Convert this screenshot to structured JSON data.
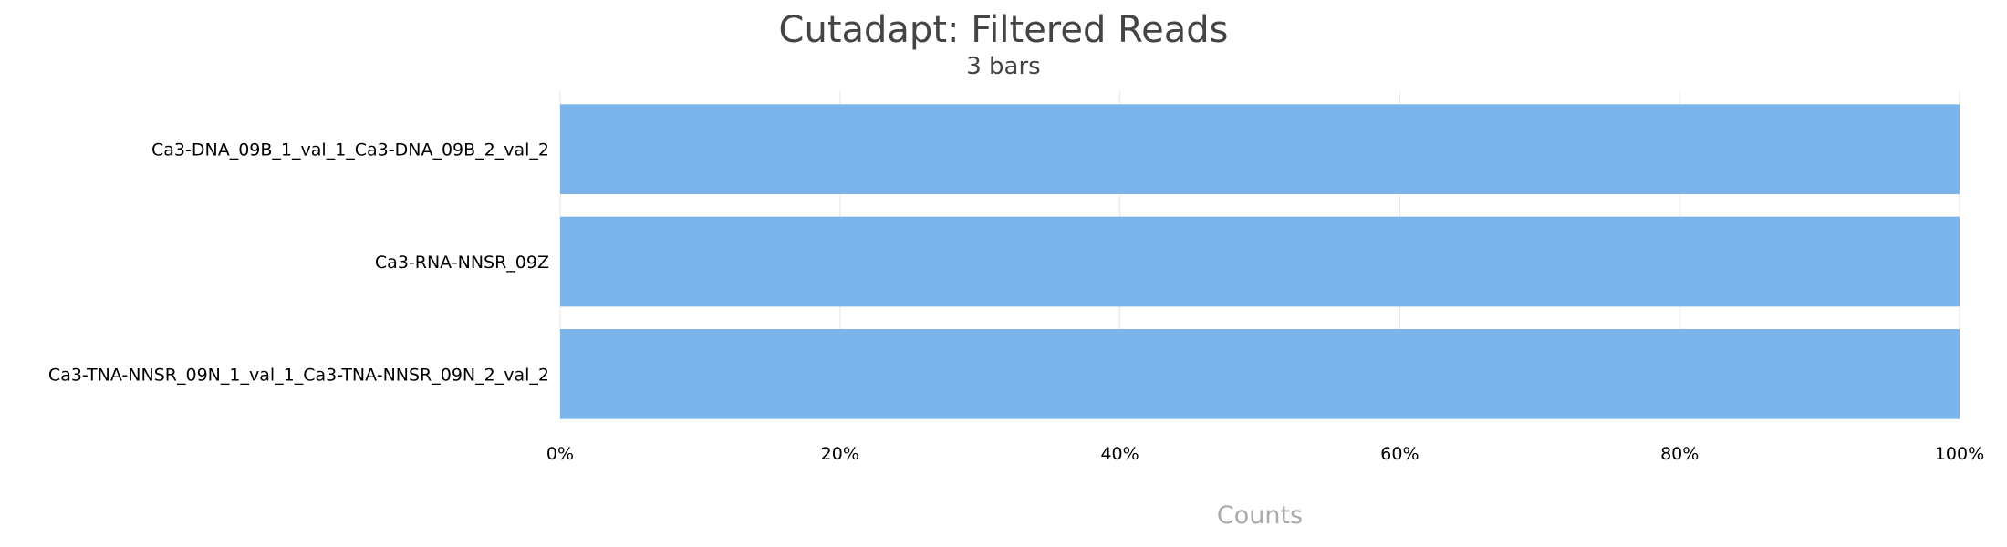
{
  "chart_data": {
    "type": "bar",
    "orientation": "horizontal",
    "stacked_percent": true,
    "title": "Cutadapt: Filtered Reads",
    "subtitle": "3 bars",
    "xlabel": "Counts",
    "ylabel": "",
    "categories": [
      "Ca3-DNA_09B_1_val_1_Ca3-DNA_09B_2_val_2",
      "Ca3-RNA-NNSR_09Z",
      "Ca3-TNA-NNSR_09N_1_val_1_Ca3-TNA-NNSR_09N_2_val_2"
    ],
    "values": [
      100,
      100,
      100
    ],
    "xlim": [
      0,
      100
    ],
    "x_ticks": [
      "0%",
      "20%",
      "40%",
      "60%",
      "80%",
      "100%"
    ],
    "grid": true,
    "legend": "none",
    "colors": {
      "bar": "#7cb5ec",
      "grid": "#e6e6e6",
      "axis_title": "#aaaaaa",
      "title": "#444444",
      "label": "#000000"
    }
  }
}
